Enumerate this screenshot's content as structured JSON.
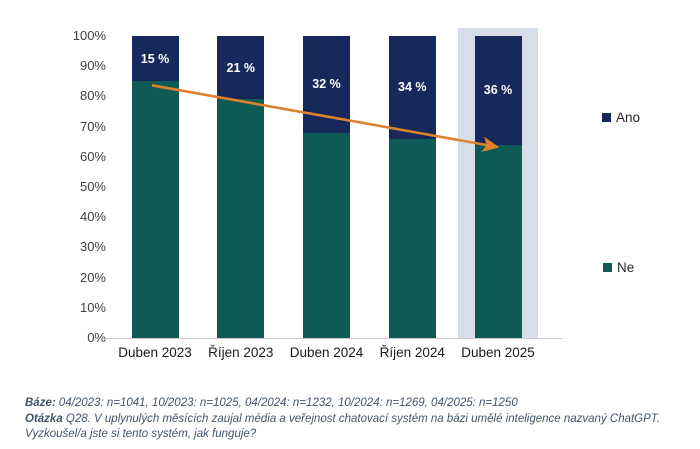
{
  "chart_data": {
    "type": "bar",
    "subtype": "stacked-100-percent-column",
    "categories": [
      "Duben 2023",
      "Říjen 2023",
      "Duben 2024",
      "Říjen 2024",
      "Duben 2025"
    ],
    "series": [
      {
        "name": "Ano",
        "color": "#17295a",
        "values": [
          15,
          21,
          32,
          34,
          36
        ],
        "data_labels": [
          "15 %",
          "21 %",
          "32 %",
          "34 %",
          "36 %"
        ],
        "label_color": "#ffffff"
      },
      {
        "name": "Ne",
        "color": "#0e5a54",
        "values": [
          85,
          79,
          68,
          66,
          64
        ]
      }
    ],
    "ylim": [
      0,
      100
    ],
    "y_ticks": [
      "0%",
      "10%",
      "20%",
      "30%",
      "40%",
      "50%",
      "60%",
      "70%",
      "80%",
      "90%",
      "100%"
    ],
    "grid": false,
    "legend_position": "right",
    "highlighted_category": "Duben 2025",
    "highlight_color": "#d8dee9",
    "trend_arrow": {
      "color": "#e0812e",
      "from_category": "Duben 2023",
      "from_percent": 85,
      "to_category": "Duben 2025",
      "to_percent": 64
    }
  },
  "legend": {
    "items": [
      {
        "label": "Ano",
        "color": "#17295a"
      },
      {
        "label": "Ne",
        "color": "#0e5a54"
      }
    ]
  },
  "footer": {
    "base_label": "Báze:",
    "base_text": " 04/2023: n=1041, 10/2023: n=1025, 04/2024: n=1232, 10/2024: n=1269, 04/2025: n=1250",
    "question_label": "Otázka",
    "question_text": " Q28. V uplynulých měsících zaujal média a veřejnost chatovací systém na bázi umělé inteligence nazvaný ChatGPT.",
    "question_text2": "Vyzkoušel/a jste si tento systém, jak funguje?"
  }
}
